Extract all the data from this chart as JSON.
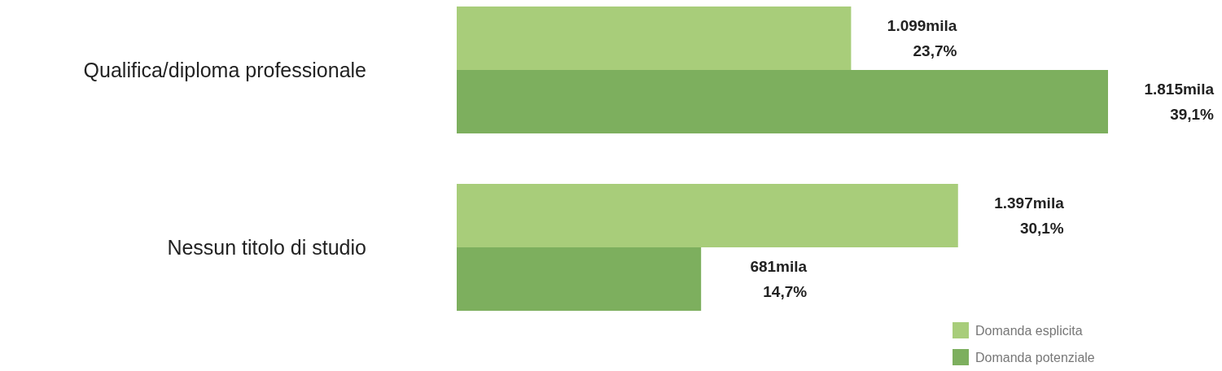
{
  "chart_data": {
    "type": "bar",
    "orientation": "horizontal",
    "categories": [
      "Qualifica/diploma professionale",
      "Nessun titolo di studio"
    ],
    "series": [
      {
        "name": "Domanda esplicita",
        "color": "#a8cd7a",
        "values": [
          1099,
          1397
        ],
        "value_labels": [
          "1.099mila\n23,7%",
          "1.397mila\n30,1%"
        ]
      },
      {
        "name": "Domanda potenziale",
        "color": "#7daf5e",
        "values": [
          1815,
          681
        ],
        "value_labels": [
          "1.815mila\n39,1%",
          "681mila\n14,7%"
        ]
      }
    ],
    "legend": "bottom right"
  }
}
